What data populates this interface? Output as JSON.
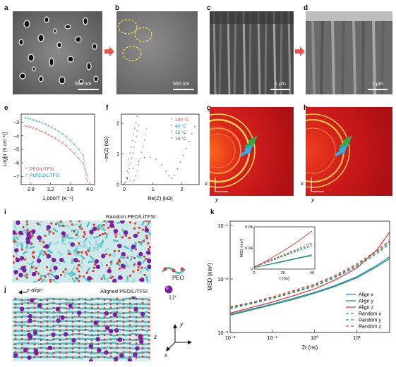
{
  "panels": {
    "a": "a",
    "b": "b",
    "c": "c",
    "d": "d",
    "e": "e",
    "f": "f",
    "g": "g",
    "h": "h",
    "i": "i",
    "j": "j",
    "k": "k"
  },
  "sem": {
    "a_scale": "500 nm",
    "b_scale": "500 nm",
    "c_scale": "1 μm",
    "d_scale": "1 μm"
  },
  "colors": {
    "arrow": "#ef5350",
    "peo_red": "#e53935",
    "peo_blue": "#1e88e5",
    "green": "#2e9e3a",
    "grey": "#444444",
    "purple": "#7b1fa2",
    "cyan": "#4fc3c8"
  },
  "chart_data": [
    {
      "type": "scatter",
      "panel": "e",
      "xlabel": "1,000/T (K⁻¹)",
      "ylabel": "Log[σ (S cm⁻¹)]",
      "xticks": [
        "2.8",
        "3.2",
        "3.6",
        "4.0"
      ],
      "yticks": [
        "−3",
        "−4",
        "−5",
        "−6",
        "−7"
      ],
      "xlim": [
        2.6,
        4.1
      ],
      "ylim": [
        -7.6,
        -2.4
      ],
      "series": [
        {
          "name": "PEO/LiTFSI",
          "color": "#e53935",
          "x": [
            2.68,
            2.74,
            2.79,
            2.85,
            2.91,
            2.97,
            3.03,
            3.1,
            3.16,
            3.23,
            3.3,
            3.37,
            3.45,
            3.53,
            3.61,
            3.69,
            3.78,
            3.87,
            3.95
          ],
          "y": [
            -3.3,
            -3.35,
            -3.4,
            -3.47,
            -3.55,
            -3.63,
            -3.72,
            -3.83,
            -3.95,
            -4.08,
            -4.22,
            -4.38,
            -4.57,
            -4.8,
            -5.05,
            -5.35,
            -5.7,
            -6.1,
            -7.4
          ]
        },
        {
          "name": "PI/PEO/LiTFSI",
          "color": "#1e88e5",
          "x": [
            2.68,
            2.74,
            2.79,
            2.85,
            2.91,
            2.97,
            3.03,
            3.1,
            3.16,
            3.23,
            3.3,
            3.37,
            3.45,
            3.53,
            3.61,
            3.69,
            3.78,
            3.87,
            3.95
          ],
          "y": [
            -2.7,
            -2.75,
            -2.8,
            -2.86,
            -2.93,
            -3.0,
            -3.08,
            -3.18,
            -3.3,
            -3.42,
            -3.56,
            -3.72,
            -3.9,
            -4.12,
            -4.38,
            -4.68,
            -5.05,
            -5.5,
            -7.0
          ]
        }
      ],
      "legend": [
        "PEO/LiTFSI",
        "PI/PEO/LiTFSI"
      ]
    },
    {
      "type": "scatter",
      "panel": "f",
      "xlabel": "Re(Z) (kΩ)",
      "ylabel": "−Im(Z) (kΩ)",
      "xticks": [
        "0",
        "1",
        "2"
      ],
      "yticks": [
        "0",
        "1",
        "2"
      ],
      "xlim": [
        -0.1,
        2.6
      ],
      "ylim": [
        0,
        2.3
      ],
      "series": [
        {
          "name": "100 °C",
          "color": "#e53935",
          "x": [
            0.05,
            0.08,
            0.1,
            0.13,
            0.16,
            0.2,
            0.24,
            0.28,
            0.32,
            0.36,
            0.4,
            0.44
          ],
          "y": [
            0.05,
            0.2,
            0.4,
            0.6,
            0.8,
            1.0,
            1.2,
            1.4,
            1.6,
            1.8,
            2.0,
            2.2
          ]
        },
        {
          "name": "40 °C",
          "color": "#1e88e5",
          "x": [
            0.05,
            0.1,
            0.14,
            0.18,
            0.22,
            0.26,
            0.3,
            0.34,
            0.38,
            0.42,
            0.46,
            0.5
          ],
          "y": [
            0.05,
            0.18,
            0.34,
            0.5,
            0.67,
            0.84,
            1.0,
            1.18,
            1.36,
            1.54,
            1.72,
            1.9
          ]
        },
        {
          "name": "25 °C",
          "color": "#2e9e3a",
          "x": [
            0.1,
            0.2,
            0.3,
            0.35,
            0.4,
            0.45,
            0.5,
            0.55,
            0.6,
            0.65,
            0.7,
            0.74,
            0.78
          ],
          "y": [
            0.15,
            0.1,
            0.05,
            0.12,
            0.25,
            0.42,
            0.62,
            0.82,
            1.02,
            1.22,
            1.42,
            1.6,
            1.78
          ]
        },
        {
          "name": "10 °C",
          "color": "#444444",
          "x": [
            0.1,
            0.3,
            0.5,
            0.7,
            0.9,
            1.1,
            1.3,
            1.45,
            1.55,
            1.65,
            1.75,
            1.85,
            1.95,
            2.05,
            2.15,
            2.25,
            2.35,
            2.45
          ],
          "y": [
            0.2,
            0.5,
            0.72,
            0.85,
            0.86,
            0.8,
            0.62,
            0.4,
            0.25,
            0.18,
            0.28,
            0.48,
            0.7,
            0.92,
            1.15,
            1.38,
            1.62,
            1.86
          ]
        }
      ],
      "legend": [
        "100 °C",
        "40 °C",
        "25 °C",
        "10 °C"
      ]
    },
    {
      "type": "line",
      "panel": "k",
      "xlabel": "2t (ns)",
      "ylabel": "MSD (nm²)",
      "xscale": "log",
      "yscale": "log",
      "xlim": [
        0.01,
        60
      ],
      "ylim": [
        0.001,
        0.12
      ],
      "xticks": [
        "10⁻²",
        "10⁻¹",
        "10⁰",
        "10¹"
      ],
      "yticks": [
        "10⁻³",
        "10⁻²",
        "10⁻¹"
      ],
      "series": [
        {
          "name": "Align x",
          "color": "#1e88e5",
          "style": "solid",
          "x": [
            0.01,
            0.03,
            0.1,
            0.3,
            1,
            3,
            10,
            30,
            60
          ],
          "y": [
            0.0022,
            0.0027,
            0.0034,
            0.0043,
            0.0056,
            0.0075,
            0.011,
            0.018,
            0.026
          ]
        },
        {
          "name": "Align y",
          "color": "#2e9e3a",
          "style": "solid",
          "x": [
            0.01,
            0.03,
            0.1,
            0.3,
            1,
            3,
            10,
            30,
            60
          ],
          "y": [
            0.0021,
            0.0026,
            0.0033,
            0.0041,
            0.0054,
            0.0072,
            0.0105,
            0.017,
            0.024
          ]
        },
        {
          "name": "Align z",
          "color": "#e53935",
          "style": "solid",
          "x": [
            0.01,
            0.03,
            0.1,
            0.3,
            1,
            3,
            10,
            30,
            60
          ],
          "y": [
            0.0023,
            0.0029,
            0.0037,
            0.0048,
            0.0065,
            0.0095,
            0.016,
            0.035,
            0.075
          ]
        },
        {
          "name": "Random x",
          "color": "#1e88e5",
          "style": "dashed",
          "x": [
            0.01,
            0.03,
            0.1,
            0.3,
            1,
            3,
            10,
            30,
            60
          ],
          "y": [
            0.0028,
            0.0034,
            0.0043,
            0.0055,
            0.0073,
            0.0105,
            0.017,
            0.03,
            0.045
          ]
        },
        {
          "name": "Random y",
          "color": "#2e9e3a",
          "style": "dashed",
          "x": [
            0.01,
            0.03,
            0.1,
            0.3,
            1,
            3,
            10,
            30,
            60
          ],
          "y": [
            0.0029,
            0.0035,
            0.0044,
            0.0057,
            0.0076,
            0.011,
            0.018,
            0.032,
            0.048
          ]
        },
        {
          "name": "Random z",
          "color": "#e53935",
          "style": "dashed",
          "x": [
            0.01,
            0.03,
            0.1,
            0.3,
            1,
            3,
            10,
            30,
            60
          ],
          "y": [
            0.003,
            0.0036,
            0.0046,
            0.006,
            0.008,
            0.0115,
            0.019,
            0.034,
            0.052
          ]
        }
      ],
      "legend": [
        "Align x",
        "Align y",
        "Align z",
        "Random x",
        "Random y",
        "Random z"
      ],
      "inset": {
        "xlabel": "t (ns)",
        "ylabel": "MSD (nm²)",
        "xticks": [
          "0",
          "20",
          "40"
        ],
        "yticks": [
          "0",
          "0.04",
          "0.08"
        ],
        "xlim": [
          0,
          42
        ],
        "ylim": [
          0,
          0.08
        ],
        "series": [
          {
            "name": "Align x",
            "x": [
              0,
              5,
              10,
              15,
              20,
              25,
              30,
              35,
              40
            ],
            "y": [
              0.003,
              0.006,
              0.009,
              0.012,
              0.015,
              0.018,
              0.021,
              0.024,
              0.027
            ]
          },
          {
            "name": "Align y",
            "x": [
              0,
              5,
              10,
              15,
              20,
              25,
              30,
              35,
              40
            ],
            "y": [
              0.003,
              0.0058,
              0.0086,
              0.011,
              0.014,
              0.017,
              0.02,
              0.023,
              0.025
            ]
          },
          {
            "name": "Align z",
            "x": [
              0,
              5,
              10,
              15,
              20,
              25,
              30,
              35,
              40
            ],
            "y": [
              0.004,
              0.01,
              0.018,
              0.026,
              0.034,
              0.043,
              0.052,
              0.062,
              0.072
            ]
          },
          {
            "name": "Random x",
            "x": [
              0,
              5,
              10,
              15,
              20,
              25,
              30,
              35,
              40
            ],
            "y": [
              0.004,
              0.009,
              0.014,
              0.019,
              0.024,
              0.029,
              0.034,
              0.039,
              0.044
            ]
          },
          {
            "name": "Random y",
            "x": [
              0,
              5,
              10,
              15,
              20,
              25,
              30,
              35,
              40
            ],
            "y": [
              0.004,
              0.0095,
              0.015,
              0.02,
              0.025,
              0.031,
              0.036,
              0.041,
              0.047
            ]
          },
          {
            "name": "Random z",
            "x": [
              0,
              5,
              10,
              15,
              20,
              25,
              30,
              35,
              40
            ],
            "y": [
              0.0045,
              0.01,
              0.016,
              0.021,
              0.027,
              0.032,
              0.038,
              0.044,
              0.05
            ]
          }
        ]
      }
    }
  ],
  "md": {
    "i_title": "Random PEO/LiTFSI",
    "j_title": "Aligned PEO/LiTFSI",
    "j_align": "z-align",
    "legend_peo": "PEO",
    "legend_li": "Li⁺",
    "axis_x": "x",
    "axis_y": "y",
    "axis_z": "z"
  },
  "waxs": {
    "axis_x": "x",
    "axis_y": "y"
  }
}
